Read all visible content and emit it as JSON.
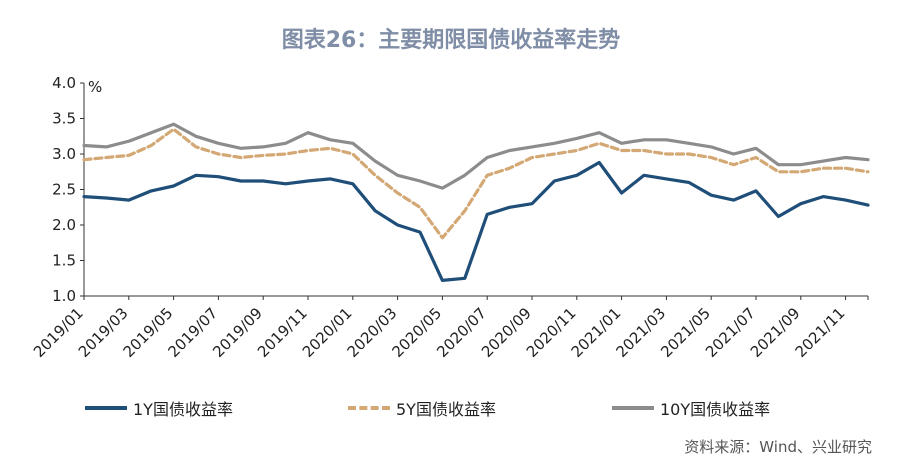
{
  "title": "图表26：主要期限国债收益率走势",
  "source": "资料来源：Wind、兴业研究",
  "chart_data": {
    "type": "line",
    "unit": "%",
    "ylim": [
      1.0,
      4.0
    ],
    "yticks": [
      "1.0",
      "1.5",
      "2.0",
      "2.5",
      "3.0",
      "3.5",
      "4.0"
    ],
    "x_tick_labels": [
      "2019/01",
      "2019/03",
      "2019/05",
      "2019/07",
      "2019/09",
      "2019/11",
      "2020/01",
      "2020/03",
      "2020/05",
      "2020/07",
      "2020/09",
      "2020/11",
      "2021/01",
      "2021/03",
      "2021/05",
      "2021/07",
      "2021/09",
      "2021/11"
    ],
    "x": [
      "2019/01",
      "2019/02",
      "2019/03",
      "2019/04",
      "2019/05",
      "2019/06",
      "2019/07",
      "2019/08",
      "2019/09",
      "2019/10",
      "2019/11",
      "2019/12",
      "2020/01",
      "2020/02",
      "2020/03",
      "2020/04",
      "2020/05",
      "2020/06",
      "2020/07",
      "2020/08",
      "2020/09",
      "2020/10",
      "2020/11",
      "2020/12",
      "2021/01",
      "2021/02",
      "2021/03",
      "2021/04",
      "2021/05",
      "2021/06",
      "2021/07",
      "2021/08",
      "2021/09",
      "2021/10",
      "2021/11",
      "2021/12"
    ],
    "series": [
      {
        "name": "1Y国债收益率",
        "color": "#1f4e79",
        "dash": "solid",
        "values": [
          2.4,
          2.38,
          2.35,
          2.48,
          2.55,
          2.7,
          2.68,
          2.62,
          2.62,
          2.58,
          2.62,
          2.65,
          2.58,
          2.2,
          2.0,
          1.9,
          1.22,
          1.25,
          2.15,
          2.25,
          2.3,
          2.62,
          2.7,
          2.88,
          2.45,
          2.7,
          2.65,
          2.6,
          2.42,
          2.35,
          2.48,
          2.12,
          2.3,
          2.4,
          2.35,
          2.28
        ]
      },
      {
        "name": "5Y国债收益率",
        "color": "#d3a874",
        "dash": "dashed",
        "values": [
          2.92,
          2.95,
          2.98,
          3.12,
          3.35,
          3.1,
          3.0,
          2.95,
          2.98,
          3.0,
          3.05,
          3.08,
          3.0,
          2.7,
          2.45,
          2.25,
          1.82,
          2.2,
          2.7,
          2.8,
          2.95,
          3.0,
          3.05,
          3.15,
          3.05,
          3.05,
          3.0,
          3.0,
          2.95,
          2.85,
          2.95,
          2.75,
          2.75,
          2.8,
          2.8,
          2.75
        ]
      },
      {
        "name": "10Y国债收益率",
        "color": "#8c8c8c",
        "dash": "solid",
        "values": [
          3.12,
          3.1,
          3.18,
          3.3,
          3.42,
          3.25,
          3.15,
          3.08,
          3.1,
          3.15,
          3.3,
          3.2,
          3.15,
          2.9,
          2.7,
          2.62,
          2.52,
          2.7,
          2.95,
          3.05,
          3.1,
          3.15,
          3.22,
          3.3,
          3.15,
          3.2,
          3.2,
          3.15,
          3.1,
          3.0,
          3.08,
          2.85,
          2.85,
          2.9,
          2.95,
          2.92
        ]
      }
    ],
    "grid": false,
    "legend_position": "bottom"
  }
}
